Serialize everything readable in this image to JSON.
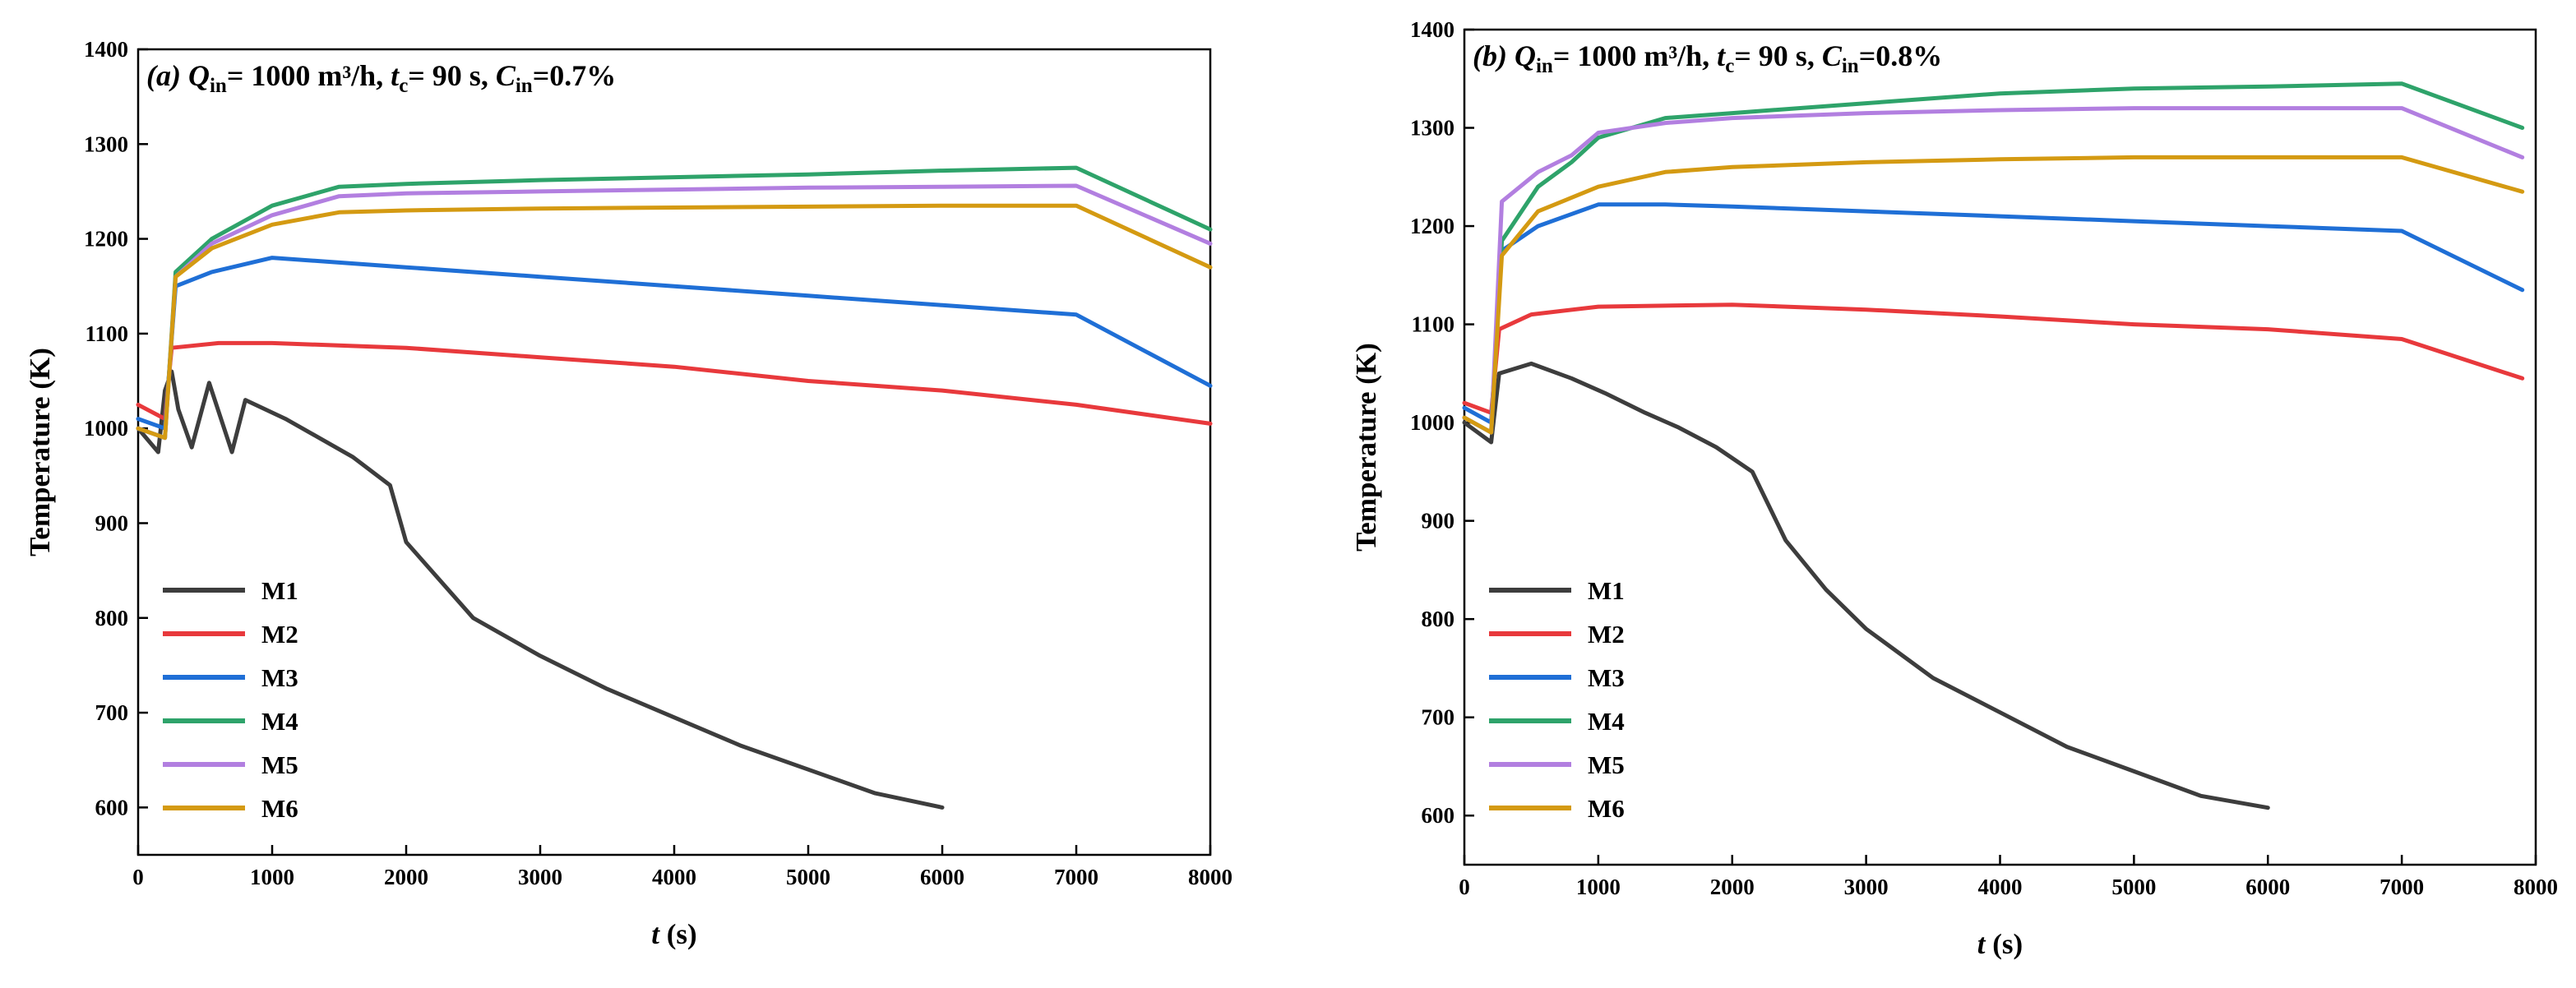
{
  "chart_data": [
    {
      "type": "line",
      "panel_label": "a",
      "title": {
        "q": "Q",
        "q_sub": "in",
        "q_rest": "= 1000 m³/h, ",
        "t": "t",
        "t_sub": "c",
        "t_rest": "= 90 s, ",
        "c": "C",
        "c_sub": "in",
        "c_rest": "=0.7%"
      },
      "xlabel": {
        "var": "t",
        "unit": " (s)"
      },
      "ylabel": "Temperature (K)",
      "xlim": [
        0,
        8000
      ],
      "ylim": [
        550,
        1400
      ],
      "xticks": [
        0,
        1000,
        2000,
        3000,
        4000,
        5000,
        6000,
        7000,
        8000
      ],
      "yticks": [
        600,
        700,
        800,
        900,
        1000,
        1100,
        1200,
        1300,
        1400
      ],
      "legend_position": "lower-left",
      "series": [
        {
          "name": "M1",
          "color": "#3d3d3d",
          "x": [
            0,
            150,
            200,
            250,
            300,
            400,
            530,
            700,
            800,
            1100,
            1350,
            1600,
            1880,
            2000,
            2500,
            3000,
            3500,
            4000,
            4500,
            5000,
            5500,
            6000
          ],
          "y": [
            1000,
            975,
            1040,
            1060,
            1020,
            980,
            1048,
            975,
            1030,
            1010,
            990,
            970,
            940,
            880,
            800,
            760,
            725,
            695,
            665,
            640,
            615,
            600
          ]
        },
        {
          "name": "M2",
          "color": "#e8393c",
          "x": [
            0,
            200,
            250,
            600,
            1000,
            2000,
            3000,
            4000,
            5000,
            6000,
            7000,
            8000
          ],
          "y": [
            1025,
            1010,
            1085,
            1090,
            1090,
            1085,
            1075,
            1065,
            1050,
            1040,
            1025,
            1005
          ]
        },
        {
          "name": "M3",
          "color": "#1f6fd6",
          "x": [
            0,
            200,
            280,
            550,
            1000,
            1500,
            2000,
            3000,
            4000,
            5000,
            6000,
            7000,
            8000
          ],
          "y": [
            1010,
            1000,
            1150,
            1165,
            1180,
            1175,
            1170,
            1160,
            1150,
            1140,
            1130,
            1120,
            1045
          ]
        },
        {
          "name": "M4",
          "color": "#2ea36a",
          "x": [
            0,
            200,
            280,
            550,
            1000,
            1500,
            2000,
            3000,
            4000,
            5000,
            6000,
            7000,
            8000
          ],
          "y": [
            1000,
            990,
            1165,
            1200,
            1235,
            1255,
            1258,
            1262,
            1265,
            1268,
            1272,
            1275,
            1210
          ]
        },
        {
          "name": "M5",
          "color": "#b27fe0",
          "x": [
            0,
            200,
            280,
            550,
            1000,
            1500,
            2000,
            3000,
            4000,
            5000,
            6000,
            7000,
            8000
          ],
          "y": [
            1000,
            990,
            1160,
            1195,
            1225,
            1245,
            1248,
            1250,
            1252,
            1254,
            1255,
            1256,
            1195
          ]
        },
        {
          "name": "M6",
          "color": "#d49a12",
          "x": [
            0,
            200,
            280,
            550,
            1000,
            1500,
            2000,
            3000,
            4000,
            5000,
            6000,
            7000,
            8000
          ],
          "y": [
            1000,
            990,
            1160,
            1190,
            1215,
            1228,
            1230,
            1232,
            1233,
            1234,
            1235,
            1235,
            1170
          ]
        }
      ]
    },
    {
      "type": "line",
      "panel_label": "b",
      "title": {
        "q": "Q",
        "q_sub": "in",
        "q_rest": "= 1000 m³/h, ",
        "t": "t",
        "t_sub": "c",
        "t_rest": "= 90 s, ",
        "c": "C",
        "c_sub": "in",
        "c_rest": "=0.8%"
      },
      "xlabel": {
        "var": "t",
        "unit": " (s)"
      },
      "ylabel": "Temperature (K)",
      "xlim": [
        0,
        8000
      ],
      "ylim": [
        550,
        1400
      ],
      "xticks": [
        0,
        1000,
        2000,
        3000,
        4000,
        5000,
        6000,
        7000,
        8000
      ],
      "yticks": [
        600,
        700,
        800,
        900,
        1000,
        1100,
        1200,
        1300,
        1400
      ],
      "legend_position": "lower-left",
      "series": [
        {
          "name": "M1",
          "color": "#3d3d3d",
          "x": [
            0,
            200,
            260,
            500,
            800,
            1050,
            1350,
            1600,
            1880,
            2150,
            2400,
            2700,
            3000,
            3500,
            4000,
            4500,
            5000,
            5500,
            6000
          ],
          "y": [
            1000,
            980,
            1050,
            1060,
            1045,
            1030,
            1010,
            995,
            975,
            950,
            880,
            830,
            790,
            740,
            705,
            670,
            645,
            620,
            608
          ]
        },
        {
          "name": "M2",
          "color": "#e8393c",
          "x": [
            0,
            200,
            260,
            500,
            1000,
            2000,
            3000,
            4000,
            5000,
            6000,
            7000,
            7900
          ],
          "y": [
            1020,
            1010,
            1095,
            1110,
            1118,
            1120,
            1115,
            1108,
            1100,
            1095,
            1085,
            1045
          ]
        },
        {
          "name": "M3",
          "color": "#1f6fd6",
          "x": [
            0,
            200,
            280,
            550,
            1000,
            1500,
            2000,
            3000,
            4000,
            5000,
            6000,
            7000,
            7900
          ],
          "y": [
            1015,
            1000,
            1175,
            1200,
            1222,
            1222,
            1220,
            1215,
            1210,
            1205,
            1200,
            1195,
            1135
          ]
        },
        {
          "name": "M4",
          "color": "#2ea36a",
          "x": [
            0,
            200,
            280,
            550,
            800,
            1000,
            1500,
            2000,
            3000,
            4000,
            5000,
            6000,
            7000,
            7900
          ],
          "y": [
            1005,
            990,
            1185,
            1240,
            1265,
            1290,
            1310,
            1315,
            1325,
            1335,
            1340,
            1342,
            1345,
            1300
          ]
        },
        {
          "name": "M5",
          "color": "#b27fe0",
          "x": [
            0,
            200,
            280,
            550,
            800,
            1000,
            1500,
            2000,
            3000,
            4000,
            5000,
            6000,
            7000,
            7900
          ],
          "y": [
            1005,
            990,
            1225,
            1255,
            1272,
            1295,
            1305,
            1310,
            1315,
            1318,
            1320,
            1320,
            1320,
            1270
          ]
        },
        {
          "name": "M6",
          "color": "#d49a12",
          "x": [
            0,
            200,
            280,
            550,
            1000,
            1500,
            2000,
            3000,
            4000,
            5000,
            6000,
            7000,
            7900
          ],
          "y": [
            1005,
            990,
            1170,
            1215,
            1240,
            1255,
            1260,
            1265,
            1268,
            1270,
            1270,
            1270,
            1235
          ]
        }
      ]
    }
  ]
}
